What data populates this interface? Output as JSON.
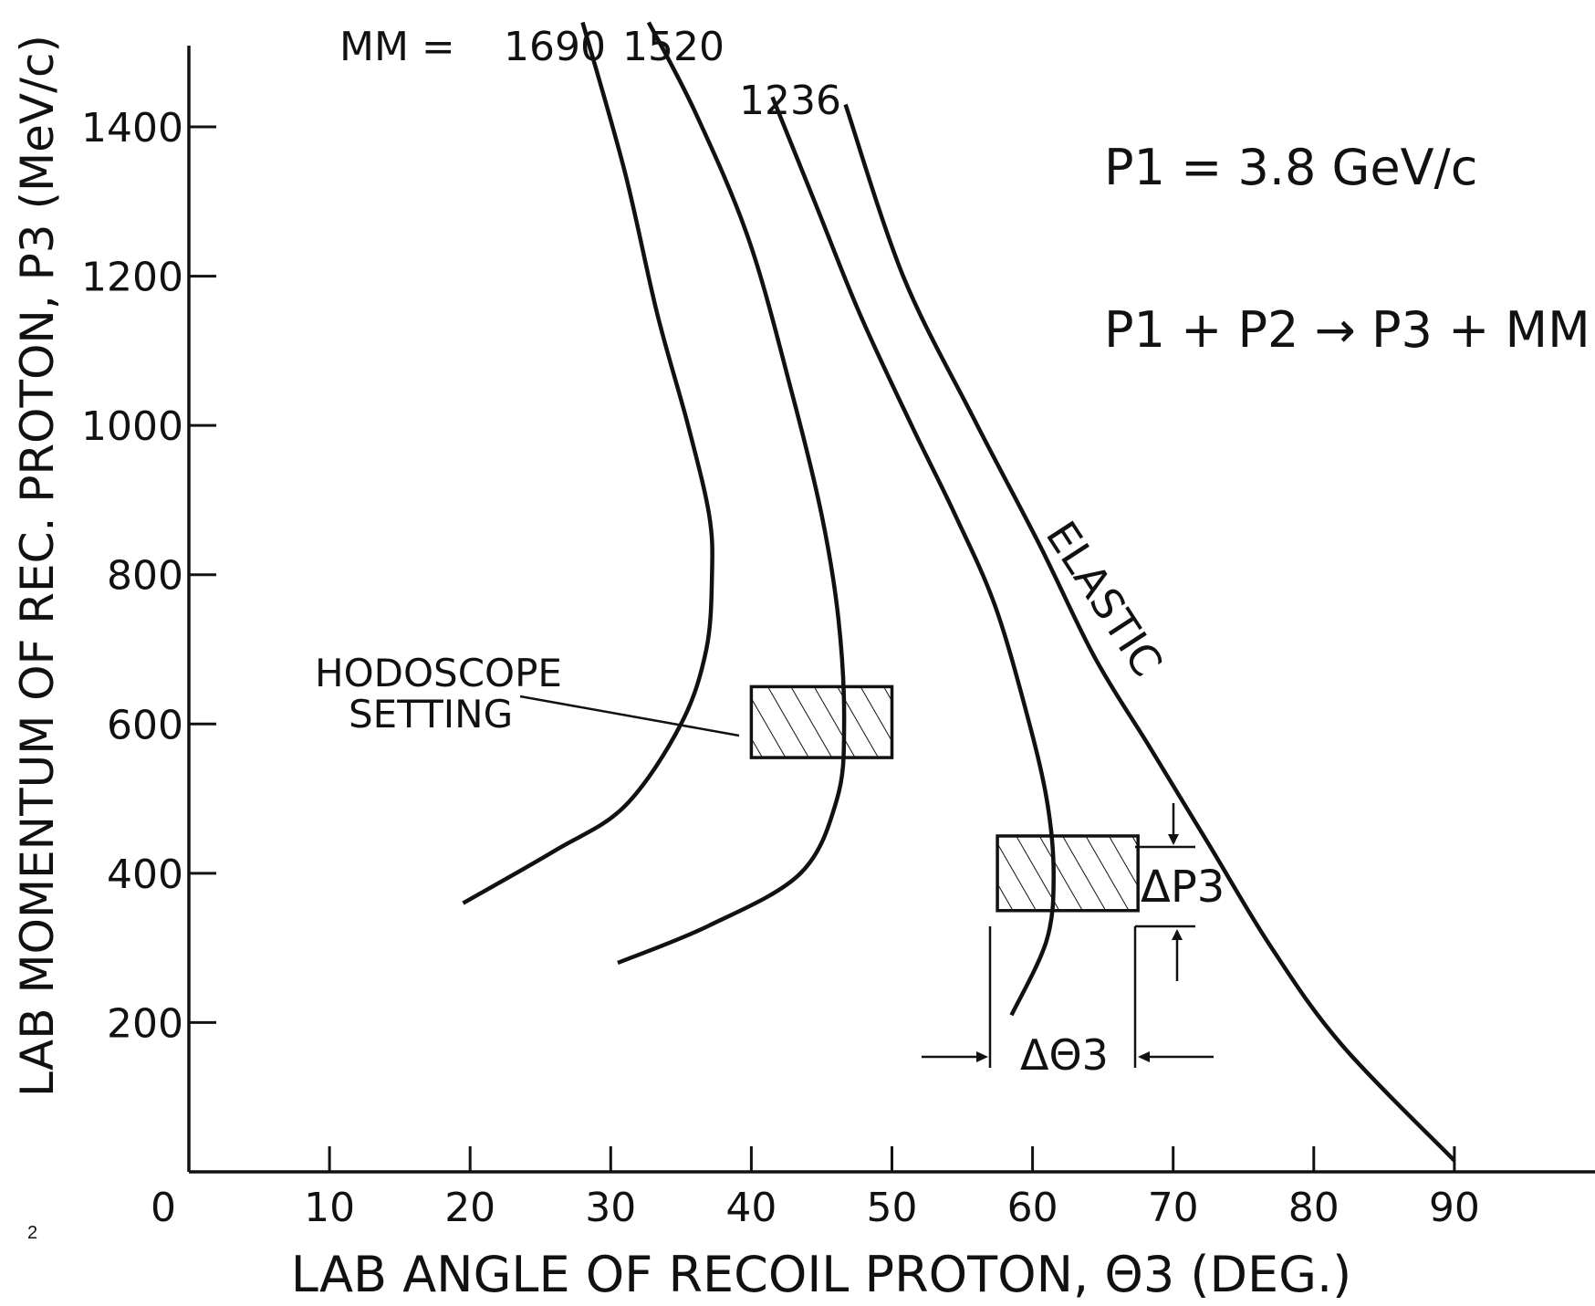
{
  "page_number": "2",
  "chart_data": {
    "type": "line",
    "title": "",
    "xlabel": "LAB ANGLE OF RECOIL PROTON, Θ3 (DEG.)",
    "ylabel": "LAB MOMENTUM OF REC. PROTON, P3 (MeV/c)",
    "xlim": [
      0,
      100
    ],
    "ylim": [
      0,
      1570
    ],
    "x_ticks": [
      "0",
      "10",
      "20",
      "30",
      "40",
      "50",
      "60",
      "70",
      "80",
      "90"
    ],
    "y_ticks": [
      "200",
      "400",
      "600",
      "800",
      "1000",
      "1200",
      "1400"
    ],
    "grid": false,
    "mm_prefix": "MM =",
    "series": [
      {
        "name": "1690",
        "points": [
          [
            28,
            1540
          ],
          [
            31,
            1340
          ],
          [
            33.3,
            1150
          ],
          [
            35.5,
            1000
          ],
          [
            37,
            880
          ],
          [
            37.2,
            800
          ],
          [
            36.8,
            700
          ],
          [
            35,
            600
          ],
          [
            31,
            490
          ],
          [
            26,
            430
          ],
          [
            19.5,
            360
          ]
        ]
      },
      {
        "name": "1520",
        "points": [
          [
            32.7,
            1540
          ],
          [
            36,
            1420
          ],
          [
            39.8,
            1250
          ],
          [
            42.8,
            1050
          ],
          [
            45,
            880
          ],
          [
            46.2,
            740
          ],
          [
            46.6,
            600
          ],
          [
            46.1,
            500
          ],
          [
            43.5,
            400
          ],
          [
            37,
            330
          ],
          [
            30.5,
            280
          ]
        ]
      },
      {
        "name": "1236",
        "points": [
          [
            41.5,
            1440
          ],
          [
            44.5,
            1300
          ],
          [
            47.7,
            1150
          ],
          [
            51.4,
            1000
          ],
          [
            54.5,
            880
          ],
          [
            57.3,
            760
          ],
          [
            59.5,
            620
          ],
          [
            61,
            500
          ],
          [
            61.5,
            400
          ],
          [
            61,
            310
          ],
          [
            58.5,
            210
          ]
        ]
      },
      {
        "name": "ELASTIC",
        "points": [
          [
            46.7,
            1430
          ],
          [
            50.8,
            1200
          ],
          [
            55.8,
            1010
          ],
          [
            60.5,
            840
          ],
          [
            64.4,
            690
          ],
          [
            68.3,
            570
          ],
          [
            72.5,
            440
          ],
          [
            77,
            300
          ],
          [
            82,
            170
          ],
          [
            90,
            15
          ]
        ]
      }
    ],
    "annotations": {
      "p1": "P1 = 3.8 GeV/c",
      "reaction": "P1 + P2 → P3 + MM",
      "hodoscope": [
        "HODOSCOPE",
        "SETTING"
      ],
      "delta_p": "ΔP3",
      "delta_theta": "ΔΘ3"
    },
    "hodoscope_boxes": [
      {
        "x_range": [
          40,
          50
        ],
        "y_range": [
          555,
          650
        ]
      },
      {
        "x_range": [
          57.5,
          67.5
        ],
        "y_range": [
          350,
          450
        ]
      }
    ]
  }
}
